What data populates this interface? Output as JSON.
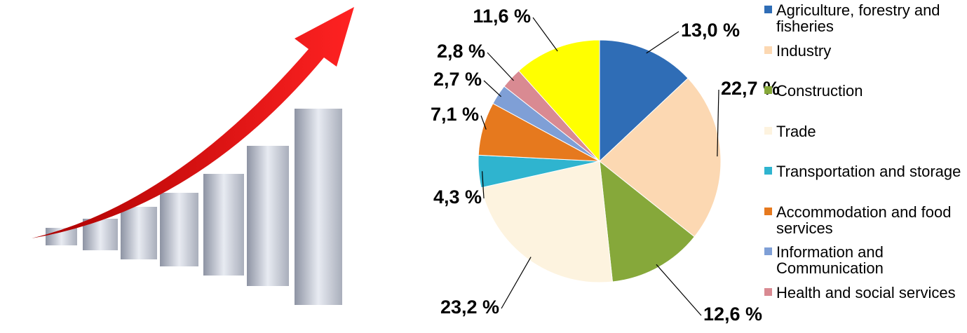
{
  "chart_data": {
    "type": "pie",
    "categories": [
      "Agriculture, forestry and fisheries",
      "Industry",
      "Construction",
      "Trade",
      "Transportation and storage",
      "Accommodation and food services",
      "Information and Communication",
      "Health and social services",
      null
    ],
    "values": [
      13.0,
      22.7,
      12.6,
      23.2,
      4.3,
      7.1,
      2.7,
      2.8,
      11.6
    ],
    "value_labels": [
      "13,0 %",
      "22,7 %",
      "12,6 %",
      "23,2 %",
      "4,3 %",
      "7,1 %",
      "2,7 %",
      "2,8 %",
      "11,6 %"
    ],
    "colors": [
      "#2f6db6",
      "#fcd8b2",
      "#86a83a",
      "#fdf3df",
      "#2fb4cf",
      "#e6791e",
      "#7f9fd6",
      "#d98a92",
      "#ffff00"
    ],
    "legend": "right"
  }
}
